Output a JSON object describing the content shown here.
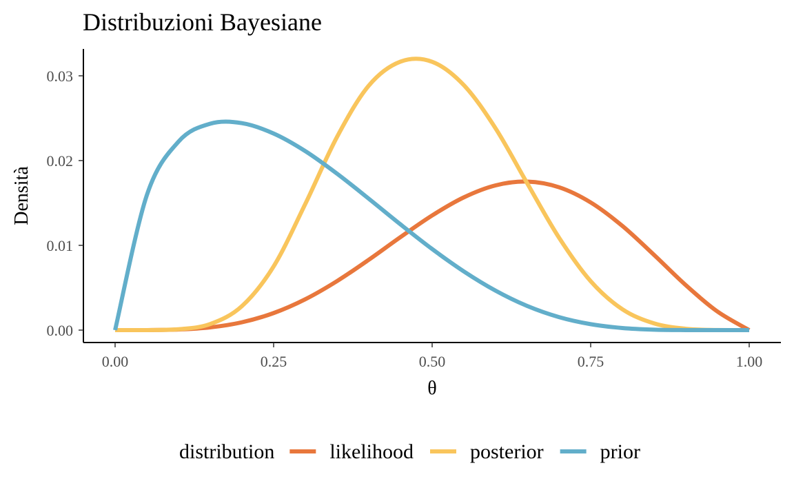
{
  "chart_data": {
    "type": "line",
    "title": "Distribuzioni Bayesiane",
    "xlabel": "θ",
    "ylabel": "Densità",
    "xlim": [
      0,
      1
    ],
    "ylim": [
      0,
      0.032
    ],
    "x_ticks": [
      0,
      0.25,
      0.5,
      0.75,
      1
    ],
    "x_tick_labels": [
      "0.00",
      "0.25",
      "0.50",
      "0.75",
      "1.00"
    ],
    "y_ticks": [
      0,
      0.01,
      0.02,
      0.03
    ],
    "y_tick_labels": [
      "0.00",
      "0.01",
      "0.02",
      "0.03"
    ],
    "grid": false,
    "legend": {
      "title": "distribution",
      "position": "bottom"
    },
    "x": [
      0.0,
      0.05,
      0.1,
      0.15,
      0.2,
      0.25,
      0.3,
      0.35,
      0.4,
      0.45,
      0.5,
      0.55,
      0.6,
      0.65,
      0.7,
      0.75,
      0.8,
      0.85,
      0.9,
      0.95,
      1.0
    ],
    "series": [
      {
        "name": "likelihood",
        "color": "#E8773C",
        "values": [
          0.0,
          4.7e-06,
          6.94e-05,
          0.000322,
          0.000924,
          0.002012,
          0.003644,
          0.005783,
          0.008296,
          0.010969,
          0.013526,
          0.015661,
          0.017074,
          0.017521,
          0.016854,
          0.015061,
          0.01229,
          0.008867,
          0.005305,
          0.002188,
          0.0
        ]
      },
      {
        "name": "posterior",
        "color": "#F9C55C",
        "values": [
          0.0,
          3.1e-06,
          9.85e-05,
          0.000716,
          0.002832,
          0.007518,
          0.014895,
          0.022791,
          0.028836,
          0.031669,
          0.031651,
          0.028895,
          0.023802,
          0.017309,
          0.010913,
          0.005772,
          0.002462,
          0.000792,
          0.000157,
          1.03e-05,
          0.0
        ]
      },
      {
        "name": "prior",
        "color": "#62AECA",
        "values": [
          0.0,
          0.015911,
          0.022239,
          0.024353,
          0.024414,
          0.023191,
          0.021113,
          0.018454,
          0.015504,
          0.012477,
          0.009567,
          0.006923,
          0.004655,
          0.002845,
          0.001537,
          0.000702,
          0.000246,
          5.29e-05,
          3.4e-06,
          0.0,
          0.0
        ]
      }
    ]
  }
}
